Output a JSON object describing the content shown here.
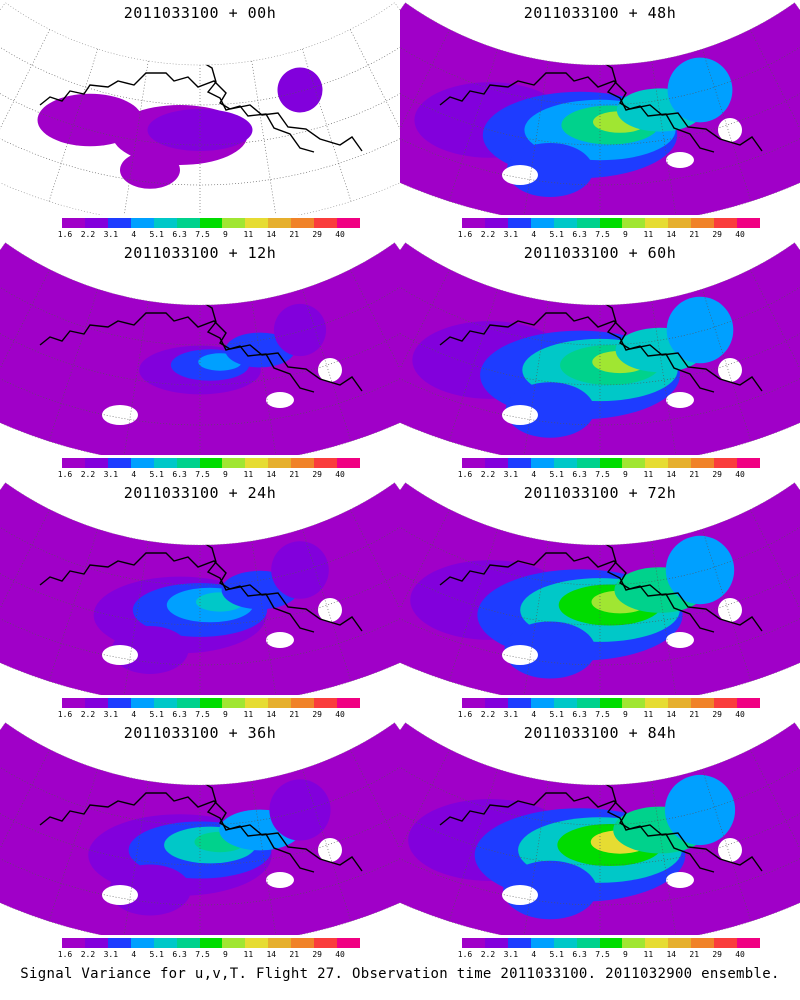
{
  "panels": [
    {
      "title": "2011033100 + 00h",
      "intensity": 0.25
    },
    {
      "title": "2011033100 + 48h",
      "intensity": 0.8
    },
    {
      "title": "2011033100 + 12h",
      "intensity": 0.45
    },
    {
      "title": "2011033100 + 60h",
      "intensity": 0.85
    },
    {
      "title": "2011033100 + 24h",
      "intensity": 0.6
    },
    {
      "title": "2011033100 + 72h",
      "intensity": 0.9
    },
    {
      "title": "2011033100 + 36h",
      "intensity": 0.7
    },
    {
      "title": "2011033100 + 84h",
      "intensity": 0.95
    }
  ],
  "colorbar": {
    "colors": [
      "#a000c8",
      "#8200dc",
      "#1e3cff",
      "#00a0ff",
      "#00c8c8",
      "#00d28c",
      "#00dc00",
      "#a0e632",
      "#e6dc32",
      "#e6af2d",
      "#f08228",
      "#fa3c3c",
      "#f00082"
    ],
    "labels": [
      "1.6",
      "2.2",
      "3.1",
      "4",
      "5.1",
      "6.3",
      "7.5",
      "9",
      "11",
      "14",
      "21",
      "29",
      "40"
    ]
  },
  "caption": "Signal Variance for u,v,T. Flight 27. Observation time 2011033100. 2011032900 ensemble."
}
